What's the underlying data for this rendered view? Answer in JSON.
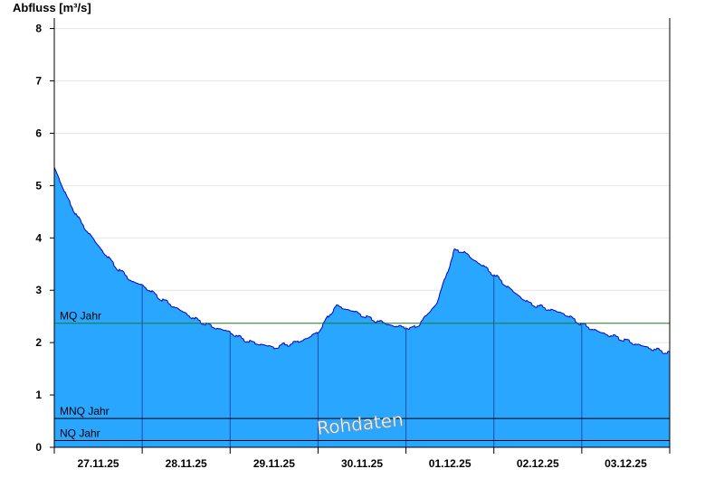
{
  "chart_data": {
    "type": "area",
    "ylabel": "Abfluss [m³/s]",
    "ylim": [
      0,
      8.2
    ],
    "y_ticks": [
      0,
      1,
      2,
      3,
      4,
      5,
      6,
      7,
      8
    ],
    "x_ticks": [
      "27.11.25",
      "28.11.25",
      "29.11.25",
      "30.11.25",
      "01.12.25",
      "02.12.25",
      "03.12.25"
    ],
    "x_range_days": [
      0,
      7
    ],
    "grid": true,
    "series": [
      {
        "x_days": [
          0,
          0.05,
          0.15,
          0.3,
          0.5,
          0.7,
          0.9,
          1.0,
          1.2,
          1.4,
          1.6,
          1.8,
          2.0,
          2.1,
          2.25,
          2.4,
          2.5,
          2.6,
          2.75,
          2.9,
          3.0,
          3.1,
          3.2,
          3.4,
          3.6,
          3.8,
          3.9,
          4.0,
          4.05,
          4.15,
          4.25,
          4.35,
          4.45,
          4.55,
          4.65,
          4.75,
          4.85,
          5.0,
          5.2,
          5.4,
          5.6,
          5.8,
          6.0,
          6.2,
          6.4,
          6.6,
          6.8,
          7.0
        ],
        "values": [
          5.35,
          5.15,
          4.75,
          4.3,
          3.85,
          3.45,
          3.15,
          3.1,
          2.85,
          2.65,
          2.45,
          2.3,
          2.2,
          2.1,
          2.0,
          1.95,
          1.9,
          1.95,
          2.0,
          2.1,
          2.2,
          2.45,
          2.7,
          2.6,
          2.45,
          2.35,
          2.3,
          2.3,
          2.25,
          2.35,
          2.55,
          2.75,
          3.25,
          3.75,
          3.75,
          3.6,
          3.5,
          3.3,
          3.0,
          2.75,
          2.65,
          2.55,
          2.35,
          2.2,
          2.1,
          1.98,
          1.88,
          1.8
        ],
        "fill_color": "#29a6ff",
        "line_color": "#0000cc"
      }
    ],
    "reference_lines": [
      {
        "label": "MQ Jahr",
        "value": 2.37,
        "color": "#1a7a1a"
      },
      {
        "label": "MNQ Jahr",
        "value": 0.55,
        "color": "#000000"
      },
      {
        "label": "NQ Jahr",
        "value": 0.13,
        "color": "#000000"
      }
    ],
    "annotation": "Rohdaten"
  }
}
